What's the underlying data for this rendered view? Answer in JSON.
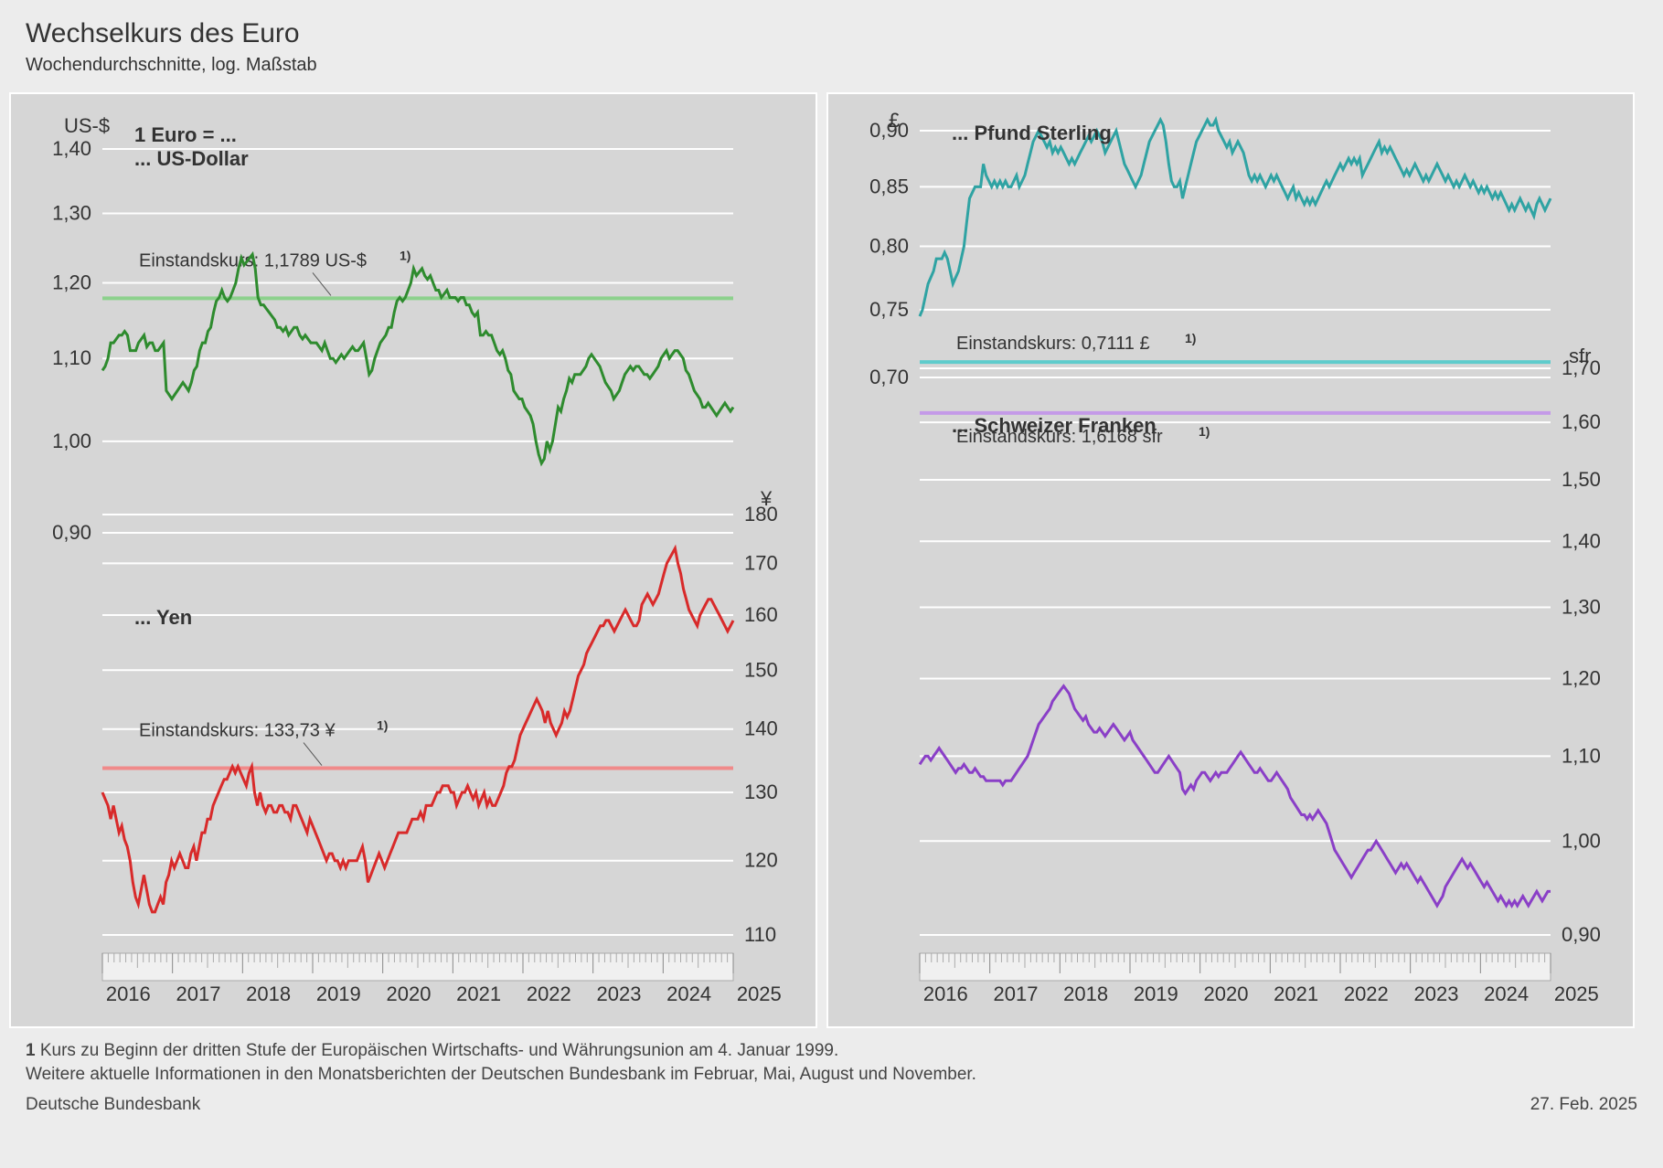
{
  "title": "Wechselkurs des Euro",
  "subtitle": "Wochendurchschnitte, log. Maßstab",
  "date": "27. Feb. 2025",
  "source": "Deutsche Bundesbank",
  "footnote_lead": "1",
  "footnote_text": " Kurs zu Beginn der dritten Stufe der Europäischen Wirtschafts- und Währungsunion am 4. Januar 1999.",
  "footnote_more": "Weitere aktuelle Informationen in den Monatsberichten der Deutschen Bundesbank im Februar, Mai, August und November.",
  "x_years": [
    2016,
    2017,
    2018,
    2019,
    2020,
    2021,
    2022,
    2023,
    2024,
    2025
  ],
  "colors": {
    "green_dark": "#2e8b2e",
    "green_light": "#8cd18c",
    "red": "#d82a2a",
    "red_light": "#f08a8a",
    "teal": "#2fa3a3",
    "teal_light": "#5fcccc",
    "purple": "#8a3fc7",
    "purple_light": "#c49ae8",
    "grid": "#ffffff",
    "panel_bg": "#d6d6d6",
    "text": "#333333"
  },
  "left_panel": {
    "header_top": "1 Euro = ...",
    "header_usd": "... US-Dollar",
    "header_yen": "... Yen",
    "usd": {
      "axis_label": "US-$",
      "ticks": [
        0.9,
        1.0,
        1.1,
        1.2,
        1.3,
        1.4
      ],
      "tick_labels": [
        "0,90",
        "1,00",
        "1,10",
        "1,20",
        "1,30",
        "1,40"
      ],
      "ref": 1.1789,
      "ref_label": "Einstandskurs: 1,1789 US-$",
      "color": "#2e8b2e",
      "ref_color": "#8cd18c",
      "data": [
        1.085,
        1.09,
        1.1,
        1.12,
        1.12,
        1.125,
        1.13,
        1.13,
        1.135,
        1.13,
        1.11,
        1.11,
        1.11,
        1.12,
        1.125,
        1.13,
        1.115,
        1.12,
        1.12,
        1.11,
        1.11,
        1.115,
        1.12,
        1.06,
        1.055,
        1.05,
        1.055,
        1.06,
        1.065,
        1.07,
        1.065,
        1.06,
        1.07,
        1.085,
        1.09,
        1.11,
        1.12,
        1.12,
        1.135,
        1.14,
        1.16,
        1.175,
        1.18,
        1.19,
        1.18,
        1.175,
        1.18,
        1.19,
        1.2,
        1.22,
        1.235,
        1.225,
        1.23,
        1.235,
        1.24,
        1.22,
        1.18,
        1.17,
        1.17,
        1.165,
        1.16,
        1.155,
        1.15,
        1.14,
        1.14,
        1.135,
        1.14,
        1.13,
        1.135,
        1.14,
        1.14,
        1.13,
        1.125,
        1.13,
        1.125,
        1.12,
        1.12,
        1.12,
        1.115,
        1.11,
        1.12,
        1.11,
        1.1,
        1.1,
        1.095,
        1.1,
        1.105,
        1.1,
        1.105,
        1.11,
        1.115,
        1.11,
        1.11,
        1.115,
        1.12,
        1.1,
        1.08,
        1.085,
        1.1,
        1.11,
        1.12,
        1.125,
        1.13,
        1.14,
        1.14,
        1.16,
        1.175,
        1.18,
        1.175,
        1.18,
        1.19,
        1.2,
        1.22,
        1.21,
        1.215,
        1.22,
        1.21,
        1.205,
        1.21,
        1.2,
        1.19,
        1.19,
        1.18,
        1.185,
        1.19,
        1.18,
        1.18,
        1.18,
        1.175,
        1.18,
        1.18,
        1.17,
        1.17,
        1.16,
        1.155,
        1.16,
        1.13,
        1.13,
        1.135,
        1.13,
        1.13,
        1.12,
        1.11,
        1.105,
        1.11,
        1.1,
        1.085,
        1.08,
        1.06,
        1.055,
        1.05,
        1.05,
        1.04,
        1.035,
        1.03,
        1.02,
        1.0,
        0.985,
        0.975,
        0.98,
        1.0,
        0.99,
        1.0,
        1.02,
        1.04,
        1.035,
        1.05,
        1.06,
        1.075,
        1.07,
        1.08,
        1.08,
        1.08,
        1.085,
        1.09,
        1.1,
        1.105,
        1.1,
        1.095,
        1.09,
        1.08,
        1.07,
        1.065,
        1.06,
        1.05,
        1.055,
        1.06,
        1.07,
        1.08,
        1.085,
        1.09,
        1.085,
        1.09,
        1.09,
        1.085,
        1.08,
        1.08,
        1.075,
        1.08,
        1.085,
        1.09,
        1.1,
        1.105,
        1.11,
        1.1,
        1.105,
        1.11,
        1.11,
        1.105,
        1.1,
        1.085,
        1.08,
        1.07,
        1.06,
        1.055,
        1.05,
        1.04,
        1.04,
        1.045,
        1.04,
        1.035,
        1.03,
        1.035,
        1.04,
        1.045,
        1.04,
        1.035,
        1.04
      ]
    },
    "yen": {
      "axis_label": "¥",
      "ticks": [
        110,
        120,
        130,
        140,
        150,
        160,
        170,
        180
      ],
      "tick_labels": [
        "110",
        "120",
        "130",
        "140",
        "150",
        "160",
        "170",
        "180"
      ],
      "ref": 133.73,
      "ref_label": "Einstandskurs: 133,73 ¥",
      "color": "#d82a2a",
      "ref_color": "#f08a8a",
      "data": [
        130,
        129,
        128,
        126,
        128,
        126,
        124,
        125,
        123,
        122,
        120,
        117,
        115,
        114,
        116,
        118,
        116,
        114,
        113,
        113,
        114,
        115,
        114,
        117,
        118,
        120,
        119,
        120,
        121,
        120,
        119,
        119,
        121,
        122,
        120,
        122,
        124,
        124,
        126,
        126,
        128,
        129,
        130,
        131,
        132,
        132,
        133,
        134,
        133,
        134,
        133,
        132,
        131,
        133,
        134,
        130,
        128,
        130,
        128,
        127,
        128,
        128,
        127,
        127,
        128,
        128,
        127,
        127,
        126,
        128,
        128,
        127,
        126,
        125,
        124,
        126,
        125,
        124,
        123,
        122,
        121,
        120,
        121,
        121,
        120,
        120,
        119,
        120,
        119,
        120,
        120,
        120,
        120,
        121,
        122,
        120,
        117,
        118,
        119,
        120,
        121,
        120,
        119,
        120,
        121,
        122,
        123,
        124,
        124,
        124,
        124,
        125,
        126,
        126,
        126,
        127,
        126,
        128,
        128,
        128,
        129,
        130,
        130,
        131,
        131,
        131,
        130,
        130,
        128,
        129,
        130,
        130,
        131,
        130,
        129,
        130,
        128,
        129,
        130,
        128,
        129,
        128,
        128,
        129,
        130,
        131,
        133,
        134,
        134,
        135,
        137,
        139,
        140,
        141,
        142,
        143,
        144,
        145,
        144,
        143,
        141,
        143,
        141,
        140,
        139,
        140,
        141,
        143,
        142,
        143,
        145,
        147,
        149,
        150,
        151,
        153,
        154,
        155,
        156,
        157,
        158,
        158,
        159,
        159,
        158,
        157,
        158,
        159,
        160,
        161,
        160,
        159,
        158,
        158,
        159,
        162,
        163,
        164,
        163,
        162,
        163,
        164,
        166,
        168,
        170,
        171,
        172,
        173,
        170,
        168,
        165,
        163,
        161,
        160,
        159,
        158,
        160,
        161,
        162,
        163,
        163,
        162,
        161,
        160,
        159,
        158,
        157,
        158,
        159
      ]
    }
  },
  "right_panel": {
    "header_gbp": "... Pfund Sterling",
    "header_chf": "... Schweizer Franken",
    "gbp": {
      "axis_label": "£",
      "ticks": [
        0.7,
        0.75,
        0.8,
        0.85,
        0.9
      ],
      "tick_labels": [
        "0,70",
        "0,75",
        "0,80",
        "0,85",
        "0,90"
      ],
      "ref": 0.7111,
      "ref_label": "Einstandskurs: 0,7111 £",
      "color": "#2fa3a3",
      "ref_color": "#5fcccc",
      "data": [
        0.745,
        0.75,
        0.76,
        0.77,
        0.775,
        0.78,
        0.79,
        0.79,
        0.79,
        0.795,
        0.79,
        0.78,
        0.77,
        0.775,
        0.78,
        0.79,
        0.8,
        0.82,
        0.84,
        0.845,
        0.85,
        0.85,
        0.85,
        0.87,
        0.86,
        0.855,
        0.85,
        0.855,
        0.85,
        0.855,
        0.85,
        0.855,
        0.85,
        0.85,
        0.855,
        0.86,
        0.85,
        0.855,
        0.86,
        0.87,
        0.88,
        0.89,
        0.895,
        0.9,
        0.895,
        0.89,
        0.885,
        0.89,
        0.88,
        0.885,
        0.88,
        0.885,
        0.88,
        0.875,
        0.87,
        0.875,
        0.87,
        0.875,
        0.88,
        0.885,
        0.89,
        0.895,
        0.89,
        0.895,
        0.9,
        0.895,
        0.89,
        0.88,
        0.885,
        0.89,
        0.895,
        0.9,
        0.89,
        0.88,
        0.87,
        0.865,
        0.86,
        0.855,
        0.85,
        0.855,
        0.86,
        0.87,
        0.88,
        0.89,
        0.895,
        0.9,
        0.905,
        0.91,
        0.905,
        0.89,
        0.87,
        0.855,
        0.85,
        0.85,
        0.855,
        0.84,
        0.85,
        0.86,
        0.87,
        0.88,
        0.89,
        0.895,
        0.9,
        0.905,
        0.91,
        0.905,
        0.905,
        0.91,
        0.9,
        0.895,
        0.89,
        0.885,
        0.89,
        0.88,
        0.885,
        0.89,
        0.885,
        0.88,
        0.87,
        0.86,
        0.855,
        0.86,
        0.855,
        0.86,
        0.855,
        0.85,
        0.855,
        0.86,
        0.855,
        0.86,
        0.855,
        0.85,
        0.845,
        0.84,
        0.845,
        0.85,
        0.84,
        0.845,
        0.84,
        0.835,
        0.84,
        0.835,
        0.84,
        0.835,
        0.84,
        0.845,
        0.85,
        0.855,
        0.85,
        0.855,
        0.86,
        0.865,
        0.87,
        0.865,
        0.87,
        0.875,
        0.87,
        0.875,
        0.87,
        0.875,
        0.86,
        0.865,
        0.87,
        0.875,
        0.88,
        0.885,
        0.89,
        0.88,
        0.885,
        0.88,
        0.885,
        0.88,
        0.875,
        0.87,
        0.865,
        0.86,
        0.865,
        0.86,
        0.865,
        0.87,
        0.865,
        0.86,
        0.855,
        0.86,
        0.855,
        0.86,
        0.865,
        0.87,
        0.865,
        0.86,
        0.855,
        0.86,
        0.855,
        0.85,
        0.855,
        0.85,
        0.855,
        0.86,
        0.855,
        0.85,
        0.855,
        0.85,
        0.845,
        0.85,
        0.845,
        0.85,
        0.845,
        0.84,
        0.845,
        0.84,
        0.845,
        0.84,
        0.835,
        0.83,
        0.835,
        0.83,
        0.835,
        0.84,
        0.835,
        0.83,
        0.835,
        0.83,
        0.825,
        0.835,
        0.84,
        0.835,
        0.83,
        0.835,
        0.84
      ]
    },
    "chf": {
      "axis_label": "sfr",
      "ticks": [
        0.9,
        1.0,
        1.1,
        1.2,
        1.3,
        1.4,
        1.5,
        1.6,
        1.7
      ],
      "tick_labels": [
        "0,90",
        "1,00",
        "1,10",
        "1,20",
        "1,30",
        "1,40",
        "1,50",
        "1,60",
        "1,70"
      ],
      "ref": 1.6168,
      "ref_label": "Einstandskurs: 1,6168 sfr",
      "color": "#8a3fc7",
      "ref_color": "#c49ae8",
      "data": [
        1.09,
        1.095,
        1.1,
        1.1,
        1.095,
        1.1,
        1.105,
        1.11,
        1.105,
        1.1,
        1.095,
        1.09,
        1.085,
        1.08,
        1.085,
        1.085,
        1.09,
        1.085,
        1.08,
        1.08,
        1.085,
        1.08,
        1.075,
        1.075,
        1.07,
        1.07,
        1.07,
        1.07,
        1.07,
        1.07,
        1.065,
        1.07,
        1.07,
        1.07,
        1.075,
        1.08,
        1.085,
        1.09,
        1.095,
        1.1,
        1.11,
        1.12,
        1.13,
        1.14,
        1.145,
        1.15,
        1.155,
        1.16,
        1.17,
        1.175,
        1.18,
        1.185,
        1.19,
        1.185,
        1.18,
        1.17,
        1.16,
        1.155,
        1.15,
        1.145,
        1.15,
        1.14,
        1.135,
        1.13,
        1.13,
        1.135,
        1.13,
        1.125,
        1.13,
        1.135,
        1.14,
        1.135,
        1.13,
        1.125,
        1.12,
        1.125,
        1.13,
        1.12,
        1.115,
        1.11,
        1.105,
        1.1,
        1.095,
        1.09,
        1.085,
        1.08,
        1.08,
        1.085,
        1.09,
        1.095,
        1.1,
        1.095,
        1.09,
        1.085,
        1.08,
        1.06,
        1.055,
        1.06,
        1.065,
        1.06,
        1.07,
        1.075,
        1.08,
        1.08,
        1.075,
        1.07,
        1.075,
        1.08,
        1.075,
        1.08,
        1.08,
        1.08,
        1.085,
        1.09,
        1.095,
        1.1,
        1.105,
        1.1,
        1.095,
        1.09,
        1.085,
        1.08,
        1.08,
        1.085,
        1.08,
        1.075,
        1.07,
        1.07,
        1.075,
        1.08,
        1.075,
        1.07,
        1.065,
        1.06,
        1.05,
        1.045,
        1.04,
        1.035,
        1.03,
        1.03,
        1.025,
        1.03,
        1.025,
        1.03,
        1.035,
        1.03,
        1.025,
        1.02,
        1.01,
        1.0,
        0.99,
        0.985,
        0.98,
        0.975,
        0.97,
        0.965,
        0.96,
        0.965,
        0.97,
        0.975,
        0.98,
        0.985,
        0.99,
        0.99,
        0.995,
        1.0,
        0.995,
        0.99,
        0.985,
        0.98,
        0.975,
        0.97,
        0.965,
        0.97,
        0.975,
        0.97,
        0.975,
        0.97,
        0.965,
        0.96,
        0.955,
        0.96,
        0.955,
        0.95,
        0.945,
        0.94,
        0.935,
        0.93,
        0.935,
        0.94,
        0.95,
        0.955,
        0.96,
        0.965,
        0.97,
        0.975,
        0.98,
        0.975,
        0.97,
        0.975,
        0.97,
        0.965,
        0.96,
        0.955,
        0.95,
        0.955,
        0.95,
        0.945,
        0.94,
        0.935,
        0.94,
        0.935,
        0.93,
        0.935,
        0.93,
        0.935,
        0.93,
        0.935,
        0.94,
        0.935,
        0.93,
        0.935,
        0.94,
        0.945,
        0.94,
        0.935,
        0.94,
        0.945,
        0.945
      ]
    }
  }
}
